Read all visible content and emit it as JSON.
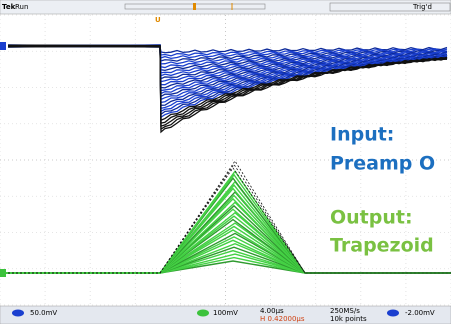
{
  "top_bar": {
    "brand": "Tek",
    "status": "Run",
    "trigger": "Trig'd"
  },
  "annotations": {
    "input_label": "Input:",
    "input_desc": "Preamp O",
    "output_label": "Output:",
    "output_desc": "Trapezoid"
  },
  "bottom_bar": {
    "ch1_scale": "50.0mV",
    "ch2_scale": "100mV",
    "time_scale": "4.00µs",
    "horizontal_position": "H 0.42000µs",
    "sample_rate": "250MS/s",
    "record_length": "10k points",
    "trigger_level": "-2.00mV"
  }
}
